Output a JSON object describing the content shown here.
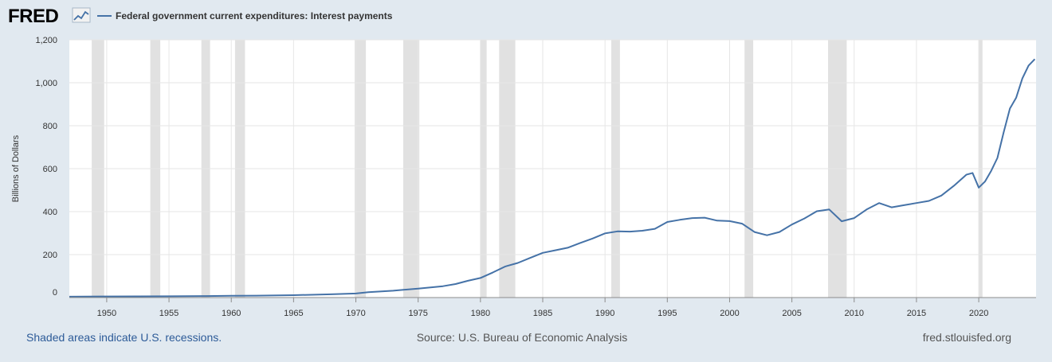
{
  "header": {
    "logo_text": "FRED",
    "legend_label": "Federal government current expenditures: Interest payments"
  },
  "footer": {
    "note": "Shaded areas indicate U.S. recessions.",
    "source": "Source: U.S. Bureau of Economic Analysis",
    "site": "fred.stlouisfed.org"
  },
  "colors": {
    "page_bg": "#e1e9f0",
    "plot_bg": "#ffffff",
    "series": "#4572a7",
    "recession": "#e1e1e1",
    "link": "#2d5b98",
    "text": "#333333"
  },
  "chart_data": {
    "type": "line",
    "title": "",
    "xlabel": "",
    "ylabel": "Billions of Dollars",
    "xlim": [
      1947,
      2024.6
    ],
    "ylim": [
      0,
      1200
    ],
    "yticks": [
      0,
      200,
      400,
      600,
      800,
      1000,
      1200
    ],
    "ytick_labels": [
      "0",
      "200",
      "400",
      "600",
      "800",
      "1,000",
      "1,200"
    ],
    "xticks": [
      1950,
      1955,
      1960,
      1965,
      1970,
      1975,
      1980,
      1985,
      1990,
      1995,
      2000,
      2005,
      2010,
      2015,
      2020
    ],
    "grid": true,
    "legend": "top-left",
    "recessions": [
      [
        1948.8,
        1949.8
      ],
      [
        1953.5,
        1954.3
      ],
      [
        1957.6,
        1958.3
      ],
      [
        1960.3,
        1961.1
      ],
      [
        1969.9,
        1970.8
      ],
      [
        1973.8,
        1975.1
      ],
      [
        1980.0,
        1980.5
      ],
      [
        1981.5,
        1982.8
      ],
      [
        1990.5,
        1991.2
      ],
      [
        2001.2,
        2001.9
      ],
      [
        2007.9,
        2009.4
      ],
      [
        2020.0,
        2020.3
      ]
    ],
    "series": [
      {
        "name": "Federal government current expenditures: Interest payments",
        "x": [
          1947,
          1950,
          1955,
          1958,
          1960,
          1962,
          1965,
          1968,
          1970,
          1971,
          1973,
          1975,
          1977,
          1978,
          1979,
          1980,
          1981,
          1982,
          1983,
          1984,
          1985,
          1986,
          1987,
          1988,
          1989,
          1990,
          1991,
          1992,
          1993,
          1994,
          1995,
          1996,
          1997,
          1998,
          1999,
          2000,
          2001,
          2002,
          2003,
          2004,
          2005,
          2006,
          2007,
          2008,
          2009,
          2010,
          2011,
          2012,
          2013,
          2014,
          2015,
          2016,
          2017,
          2018,
          2019,
          2019.5,
          2020,
          2020.5,
          2021,
          2021.5,
          2022,
          2022.5,
          2023,
          2023.5,
          2024,
          2024.5
        ],
        "y": [
          4,
          5,
          6,
          7,
          8,
          9,
          11,
          15,
          19,
          25,
          32,
          42,
          53,
          63,
          78,
          91,
          117,
          145,
          161,
          185,
          208,
          220,
          232,
          254,
          275,
          299,
          308,
          307,
          311,
          320,
          352,
          362,
          370,
          372,
          358,
          356,
          344,
          305,
          290,
          305,
          340,
          368,
          402,
          410,
          355,
          370,
          410,
          440,
          420,
          430,
          440,
          450,
          475,
          520,
          572,
          580,
          512,
          540,
          590,
          650,
          770,
          880,
          930,
          1020,
          1080,
          1110
        ]
      }
    ]
  }
}
